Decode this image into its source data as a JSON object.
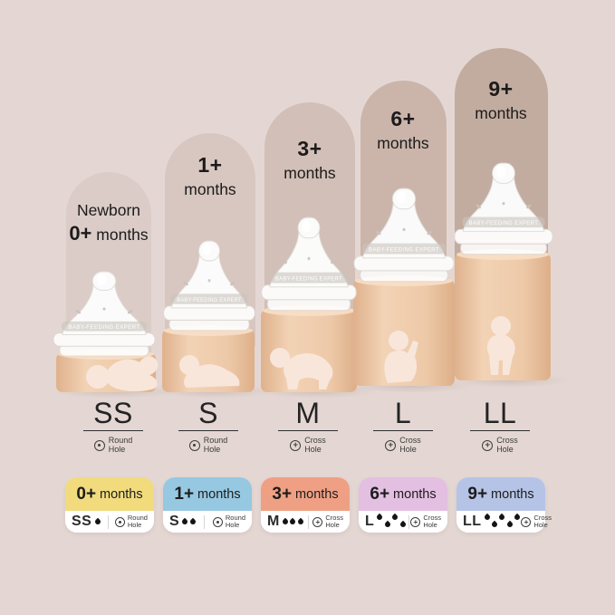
{
  "background_color": "#E4D7D3",
  "band_text": "BABY-FEEDING EXPERT",
  "columns": [
    {
      "panel_color": "#DBCCC8",
      "age_prefix": "Newborn",
      "age_num": "0+",
      "age_word": "months",
      "size": "SS",
      "hole_type": "round",
      "hole_line1": "Round",
      "hole_line2": "Hole"
    },
    {
      "panel_color": "#D8C6C0",
      "age_num": "1+",
      "age_word": "months",
      "size": "S",
      "hole_type": "round",
      "hole_line1": "Round",
      "hole_line2": "Hole"
    },
    {
      "panel_color": "#D2BFB7",
      "age_num": "3+",
      "age_word": "months",
      "size": "M",
      "hole_type": "cross",
      "hole_line1": "Cross",
      "hole_line2": "Hole"
    },
    {
      "panel_color": "#CBB5AB",
      "age_num": "6+",
      "age_word": "months",
      "size": "L",
      "hole_type": "cross",
      "hole_line1": "Cross",
      "hole_line2": "Hole"
    },
    {
      "panel_color": "#C2AC9F",
      "age_num": "9+",
      "age_word": "months",
      "size": "LL",
      "hole_type": "cross",
      "hole_line1": "Cross",
      "hole_line2": "Hole"
    }
  ],
  "cards": [
    {
      "color": "#F1DB7D",
      "age_num": "0+",
      "age_word": "months",
      "size": "SS",
      "drops": 1,
      "stagger": false,
      "hole_type": "round",
      "hole_line1": "Round",
      "hole_line2": "Hole"
    },
    {
      "color": "#96C8E1",
      "age_num": "1+",
      "age_word": "months",
      "size": "S",
      "drops": 2,
      "stagger": false,
      "hole_type": "round",
      "hole_line1": "Round",
      "hole_line2": "Hole"
    },
    {
      "color": "#EFA084",
      "age_num": "3+",
      "age_word": "months",
      "size": "M",
      "drops": 3,
      "stagger": false,
      "hole_type": "cross",
      "hole_line1": "Cross",
      "hole_line2": "Hole"
    },
    {
      "color": "#E3BFE1",
      "age_num": "6+",
      "age_word": "months",
      "size": "L",
      "drops": 4,
      "stagger": true,
      "hole_type": "cross",
      "hole_line1": "Cross",
      "hole_line2": "Hole"
    },
    {
      "color": "#B5C3E6",
      "age_num": "9+",
      "age_word": "months",
      "size": "LL",
      "drops": 5,
      "stagger": true,
      "hole_type": "cross",
      "hole_line1": "Cross",
      "hole_line2": "Hole"
    }
  ]
}
